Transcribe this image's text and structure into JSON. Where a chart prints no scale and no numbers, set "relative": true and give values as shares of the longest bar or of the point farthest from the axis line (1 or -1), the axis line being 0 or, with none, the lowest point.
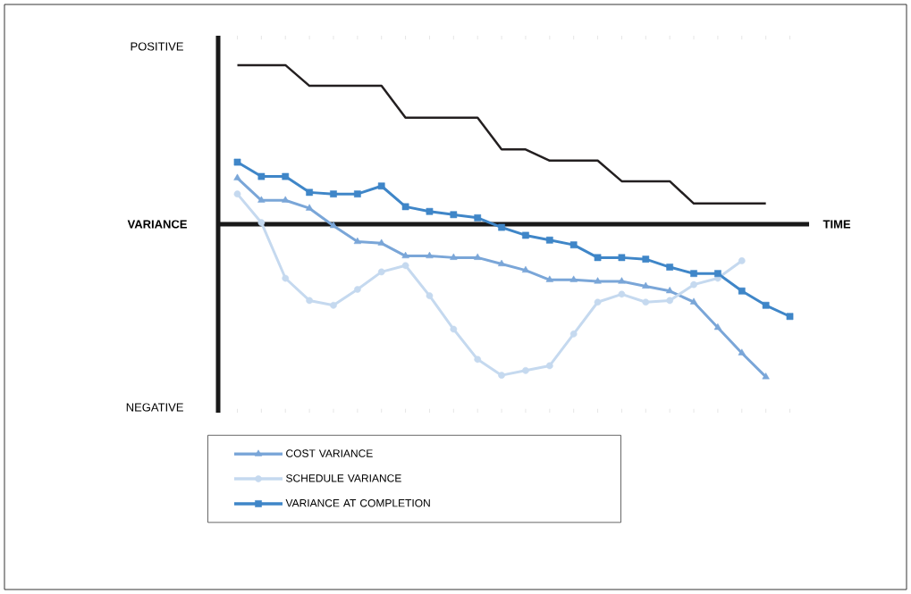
{
  "chart_data": {
    "type": "line",
    "relative": true,
    "xlabel": "TIME",
    "ylabel": "VARIANCE",
    "annotations": [
      "POSITIVE",
      "NEGATIVE"
    ],
    "categories": [
      null,
      null,
      null,
      null,
      null,
      null,
      null,
      null,
      null,
      null,
      null,
      null,
      null,
      null,
      null,
      null,
      null,
      null,
      null,
      null,
      null,
      null,
      null,
      null
    ],
    "legend": "bottom",
    "line_style": "solid",
    "series": [
      {
        "color": "#231f20",
        "marker": "none",
        "values": [
          1.0,
          1.0,
          1.0,
          0.87,
          0.87,
          0.87,
          0.87,
          0.67,
          0.67,
          0.67,
          0.67,
          0.47,
          0.47,
          0.4,
          0.4,
          0.4,
          0.27,
          0.27,
          0.27,
          0.13,
          0.13,
          0.13,
          0.13,
          null
        ]
      },
      {
        "name": "COST VARIANCE",
        "color": "#7aa6d8",
        "marker": "triangle",
        "values": [
          0.29,
          0.15,
          0.15,
          0.1,
          -0.01,
          -0.11,
          -0.12,
          -0.2,
          -0.2,
          -0.21,
          -0.21,
          -0.25,
          -0.29,
          -0.35,
          -0.35,
          -0.36,
          -0.36,
          -0.39,
          -0.42,
          -0.49,
          -0.65,
          -0.81,
          -0.96,
          null
        ]
      },
      {
        "name": "SCHEDULE VARIANCE",
        "color": "#c5d9ef",
        "marker": "circle",
        "values": [
          0.19,
          0.01,
          -0.34,
          -0.48,
          -0.51,
          -0.41,
          -0.3,
          -0.26,
          -0.45,
          -0.66,
          -0.85,
          -0.95,
          -0.92,
          -0.89,
          -0.69,
          -0.49,
          -0.44,
          -0.49,
          -0.48,
          -0.38,
          -0.34,
          -0.23,
          null,
          null
        ]
      },
      {
        "name": "VARIANCE AT COMPLETION",
        "color": "#3f86c8",
        "marker": "square",
        "values": [
          0.39,
          0.3,
          0.3,
          0.2,
          0.19,
          0.19,
          0.24,
          0.11,
          0.08,
          0.06,
          0.04,
          -0.02,
          -0.07,
          -0.1,
          -0.13,
          -0.21,
          -0.21,
          -0.22,
          -0.27,
          -0.31,
          -0.31,
          -0.42,
          -0.51,
          -0.58
        ]
      }
    ]
  }
}
